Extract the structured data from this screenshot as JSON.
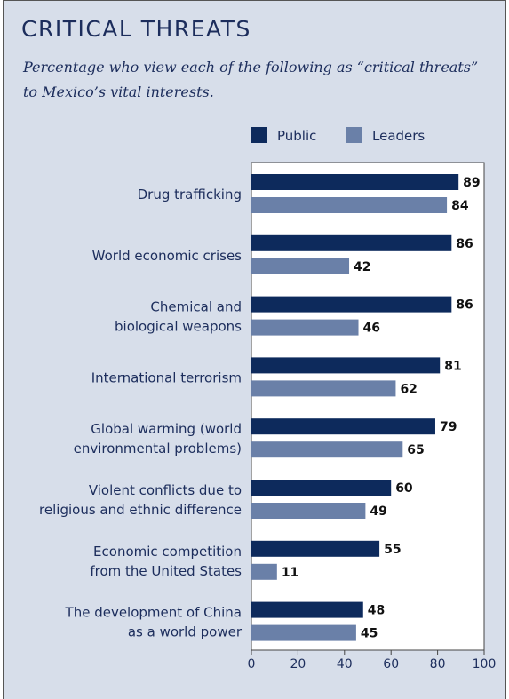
{
  "chart_data": {
    "type": "bar",
    "orientation": "horizontal",
    "title": "CRITICAL THREATS",
    "subtitle": "Percentage who view each of the following as “critical threats” to Mexico’s vital interests.",
    "categories": [
      [
        "Drug trafficking"
      ],
      [
        "World economic crises"
      ],
      [
        "Chemical and",
        "biological weapons"
      ],
      [
        "International terrorism"
      ],
      [
        "Global warming (world",
        "environmental problems)"
      ],
      [
        "Violent conflicts due to",
        "religious and ethnic difference"
      ],
      [
        "Economic competition",
        "from the United States"
      ],
      [
        "The development of China",
        "as a world power"
      ]
    ],
    "series": [
      {
        "name": "Public",
        "color": "#0d2a5c",
        "values": [
          89,
          86,
          86,
          81,
          79,
          60,
          55,
          48
        ]
      },
      {
        "name": "Leaders",
        "color": "#6a80a8",
        "values": [
          84,
          42,
          46,
          62,
          65,
          49,
          11,
          45
        ]
      }
    ],
    "xlim": [
      0,
      100
    ],
    "xticks": [
      "0",
      "20",
      "40",
      "60",
      "80",
      "100"
    ],
    "grid": false,
    "legend": "top-right"
  }
}
